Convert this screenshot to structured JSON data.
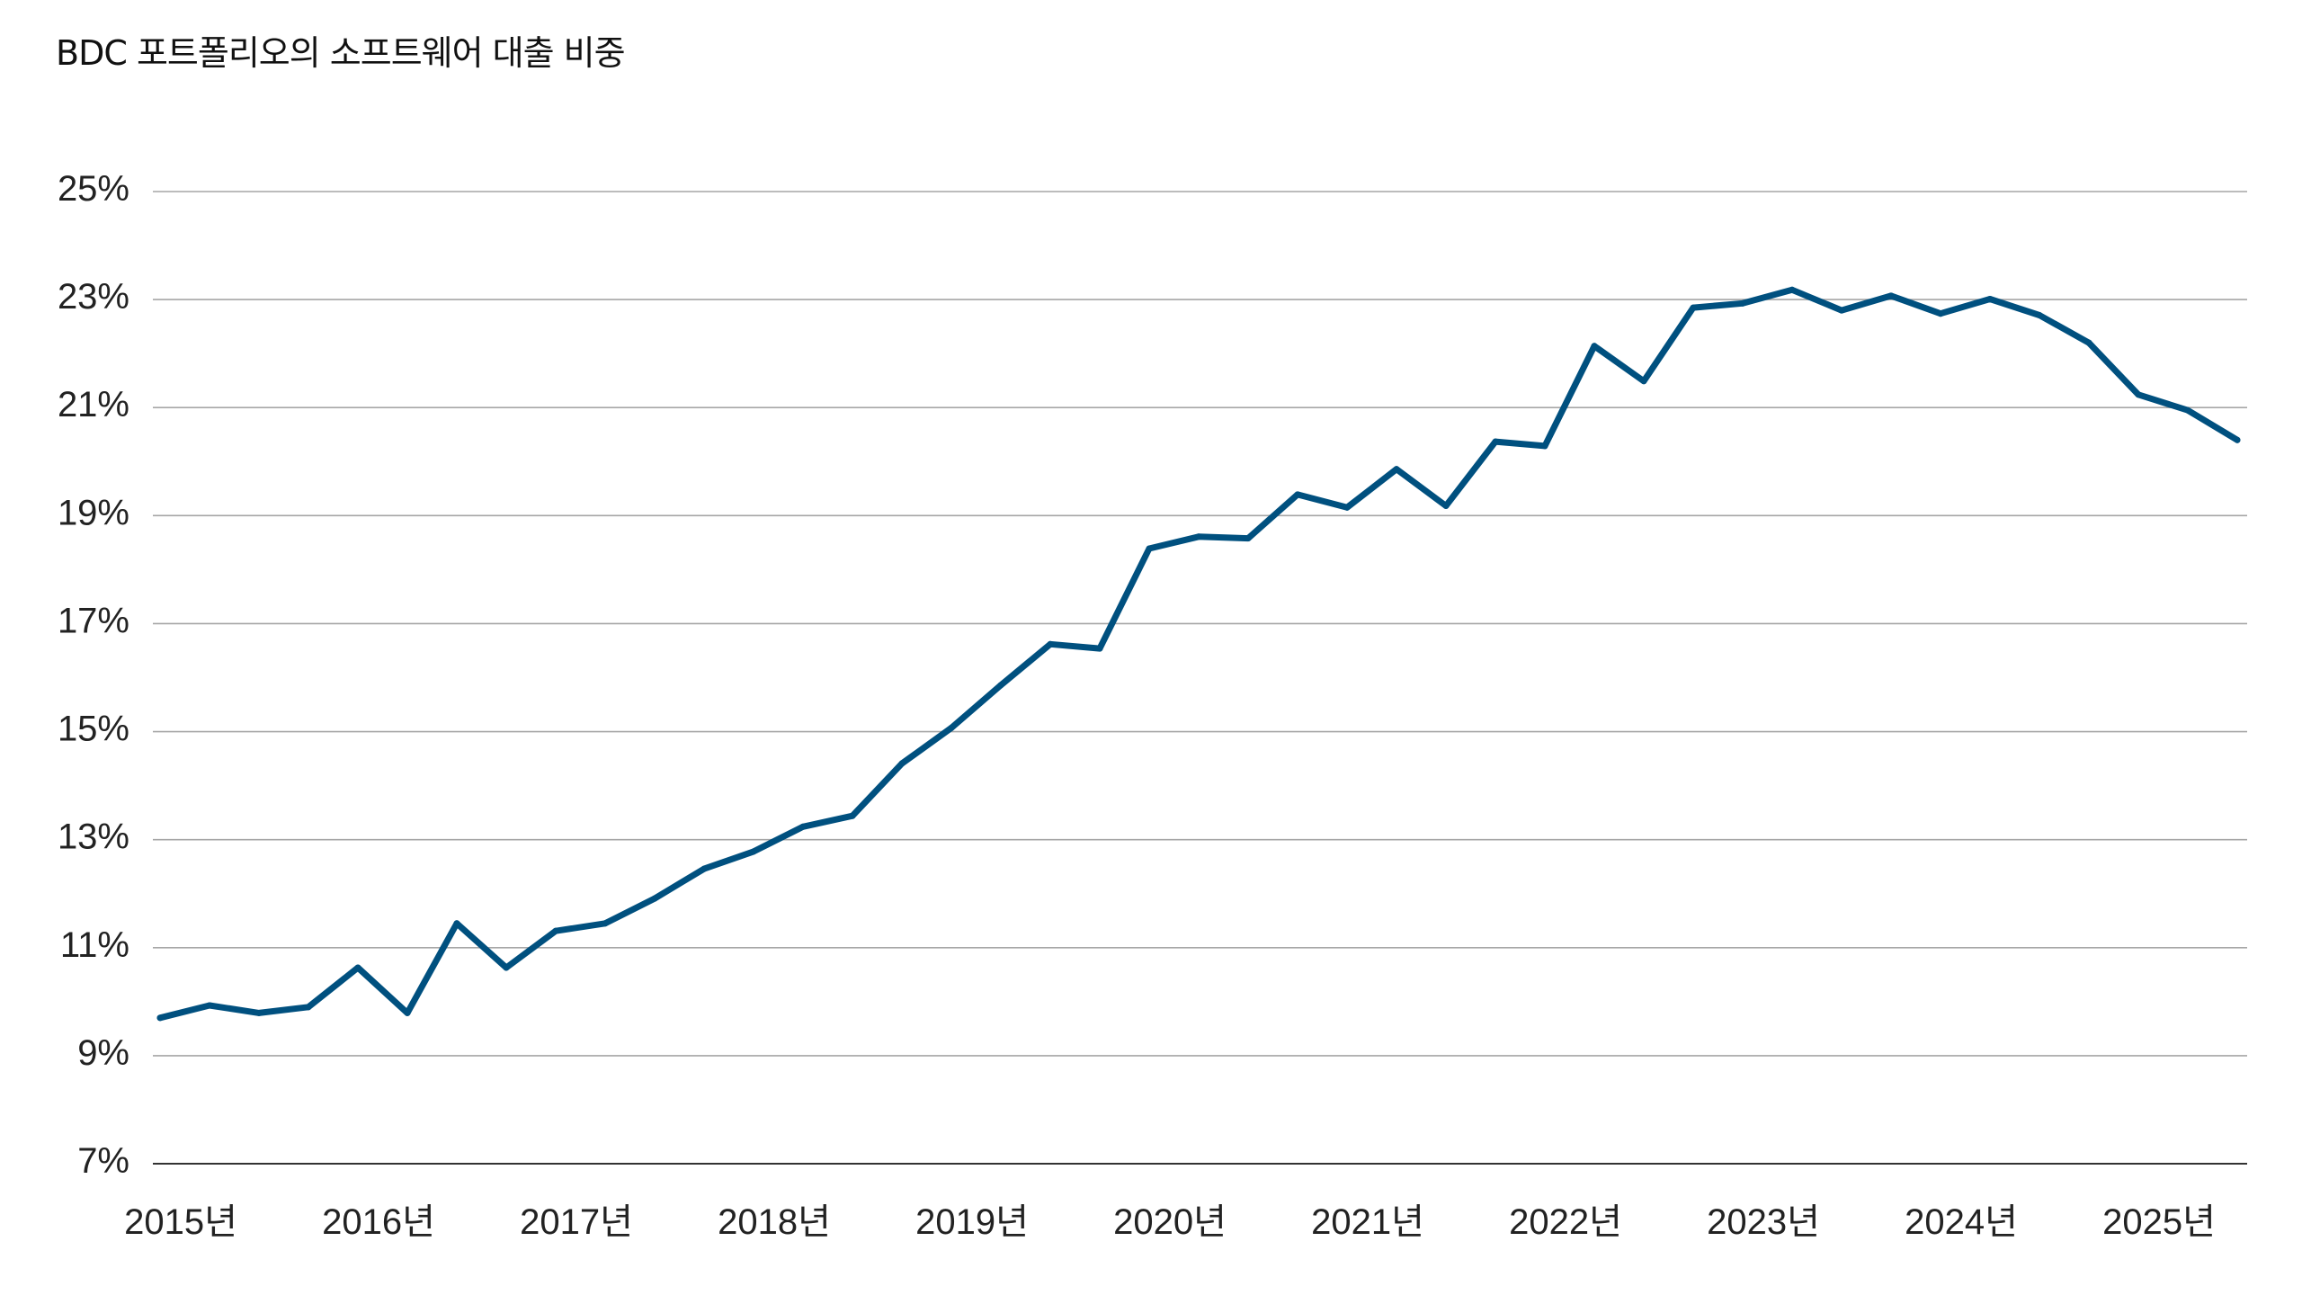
{
  "chart_data": {
    "type": "line",
    "title": "BDC 포트폴리오의 소프트웨어 대출 비중",
    "xlabel": "",
    "ylabel": "",
    "ylim": [
      7,
      25
    ],
    "yticks": [
      "25%",
      "23%",
      "21%",
      "19%",
      "17%",
      "15%",
      "13%",
      "11%",
      "9%",
      "7%"
    ],
    "ytick_values": [
      25,
      23,
      21,
      19,
      17,
      15,
      13,
      11,
      9,
      7
    ],
    "xtick_labels": [
      "2015년",
      "2016년",
      "2017년",
      "2018년",
      "2019년",
      "2020년",
      "2021년",
      "2022년",
      "2023년",
      "2024년",
      "2025년"
    ],
    "grid": "horizontal",
    "line_color": "#00507f",
    "grid_color": "#a6a6a6",
    "series": [
      {
        "frequency": "quarterly",
        "values": [
          9.7,
          9.93,
          9.79,
          9.9,
          10.63,
          9.79,
          11.45,
          10.63,
          11.31,
          11.45,
          11.91,
          12.46,
          12.78,
          13.24,
          13.44,
          14.41,
          15.07,
          15.86,
          16.62,
          16.54,
          18.39,
          18.61,
          18.58,
          19.39,
          19.15,
          19.86,
          19.18,
          20.37,
          20.29,
          22.14,
          21.49,
          22.85,
          22.93,
          23.18,
          22.8,
          23.07,
          22.74,
          23.01,
          22.71,
          22.2,
          21.24,
          20.95,
          20.4
        ]
      }
    ]
  }
}
